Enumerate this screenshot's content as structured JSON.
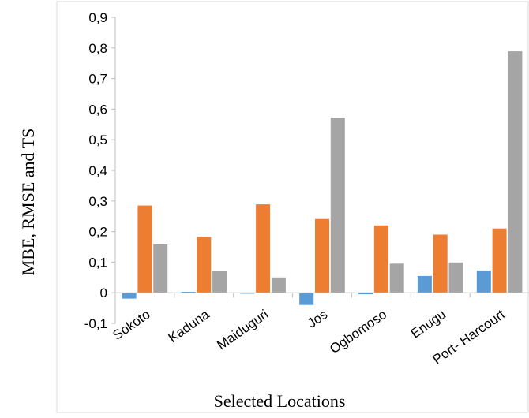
{
  "chart_data": {
    "type": "bar",
    "categories": [
      "Sokoto",
      "Kaduna",
      "Maiduguri",
      "Jos",
      "Ogbomoso",
      "Enugu",
      "Port- Harcourt"
    ],
    "series": [
      {
        "values": [
          -0.019,
          0.003,
          -0.003,
          -0.04,
          -0.005,
          0.055,
          0.073
        ],
        "color": "#5B9BD5"
      },
      {
        "values": [
          0.285,
          0.183,
          0.289,
          0.241,
          0.22,
          0.19,
          0.21
        ],
        "color": "#ED7D31"
      },
      {
        "values": [
          0.158,
          0.07,
          0.05,
          0.572,
          0.095,
          0.099,
          0.789
        ],
        "color": "#A5A5A5"
      }
    ],
    "xlabel": "Selected Locations",
    "ylabel": "MBE, RMSE and TS",
    "ylim": [
      -0.1,
      0.9
    ],
    "yticks": [
      "0,9",
      "0,8",
      "0,7",
      "0,6",
      "0,5",
      "0,4",
      "0,3",
      "0,2",
      "0,1",
      "0",
      "-0,1"
    ],
    "ytick_values": [
      0.9,
      0.8,
      0.7,
      0.6,
      0.5,
      0.4,
      0.3,
      0.2,
      0.1,
      0,
      -0.1
    ],
    "grid": false,
    "legend": "none"
  }
}
